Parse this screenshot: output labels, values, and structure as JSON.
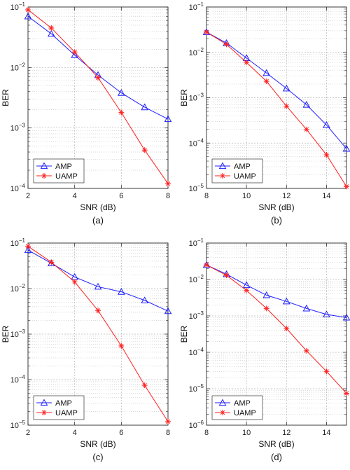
{
  "colors": {
    "amp": "#1f1fff",
    "uamp": "#ff1f1f",
    "grid": "#b8b8b8"
  },
  "chart_data": [
    {
      "type": "line",
      "caption": "(a)",
      "xlabel": "SNR (dB)",
      "ylabel": "BER",
      "y_scale": "log",
      "xlim": [
        2,
        8
      ],
      "ylim": [
        0.0001,
        0.1
      ],
      "xticks": [
        2,
        4,
        6,
        8
      ],
      "grid": true,
      "legend": "bottom-left",
      "x": [
        2,
        3,
        4,
        5,
        6,
        7,
        8
      ],
      "series": [
        {
          "name": "AMP",
          "marker": "triangle",
          "values": [
            0.07,
            0.036,
            0.016,
            0.0075,
            0.0038,
            0.0022,
            0.0014
          ]
        },
        {
          "name": "UAMP",
          "marker": "star",
          "values": [
            0.09,
            0.045,
            0.018,
            0.0068,
            0.0018,
            0.00043,
            0.00012
          ]
        }
      ]
    },
    {
      "type": "line",
      "caption": "(b)",
      "xlabel": "SNR (dB)",
      "ylabel": "BER",
      "y_scale": "log",
      "xlim": [
        8,
        15
      ],
      "ylim": [
        1e-05,
        0.1
      ],
      "xticks": [
        8,
        10,
        12,
        14
      ],
      "grid": true,
      "legend": "bottom-left",
      "x": [
        8,
        9,
        10,
        11,
        12,
        13,
        14,
        15
      ],
      "series": [
        {
          "name": "AMP",
          "marker": "triangle",
          "values": [
            0.028,
            0.016,
            0.0075,
            0.0035,
            0.0016,
            0.0007,
            0.00025,
            7.5e-05
          ]
        },
        {
          "name": "UAMP",
          "marker": "star",
          "values": [
            0.028,
            0.015,
            0.006,
            0.0023,
            0.00065,
            0.0002,
            5.5e-05,
            1.1e-05
          ]
        }
      ]
    },
    {
      "type": "line",
      "caption": "(c)",
      "xlabel": "SNR (dB)",
      "ylabel": "BER",
      "y_scale": "log",
      "xlim": [
        2,
        8
      ],
      "ylim": [
        1e-05,
        0.1
      ],
      "xticks": [
        2,
        4,
        6,
        8
      ],
      "grid": true,
      "legend": "bottom-left",
      "x": [
        2,
        3,
        4,
        5,
        6,
        7,
        8
      ],
      "series": [
        {
          "name": "AMP",
          "marker": "triangle",
          "values": [
            0.07,
            0.036,
            0.018,
            0.011,
            0.0085,
            0.0055,
            0.0032
          ]
        },
        {
          "name": "UAMP",
          "marker": "star",
          "values": [
            0.085,
            0.038,
            0.014,
            0.0033,
            0.00055,
            7.5e-05,
            1.2e-05
          ]
        }
      ]
    },
    {
      "type": "line",
      "caption": "(d)",
      "xlabel": "SNR (dB)",
      "ylabel": "BER",
      "y_scale": "log",
      "xlim": [
        8,
        15
      ],
      "ylim": [
        1e-06,
        0.1
      ],
      "xticks": [
        8,
        10,
        12,
        14
      ],
      "grid": true,
      "legend": "bottom-left",
      "x": [
        8,
        9,
        10,
        11,
        12,
        13,
        14,
        15
      ],
      "series": [
        {
          "name": "AMP",
          "marker": "triangle",
          "values": [
            0.025,
            0.014,
            0.007,
            0.0037,
            0.0025,
            0.0016,
            0.0011,
            0.0009
          ]
        },
        {
          "name": "UAMP",
          "marker": "star",
          "values": [
            0.025,
            0.013,
            0.005,
            0.0016,
            0.00045,
            0.00011,
            3e-05,
            7.5e-06
          ]
        }
      ]
    }
  ]
}
